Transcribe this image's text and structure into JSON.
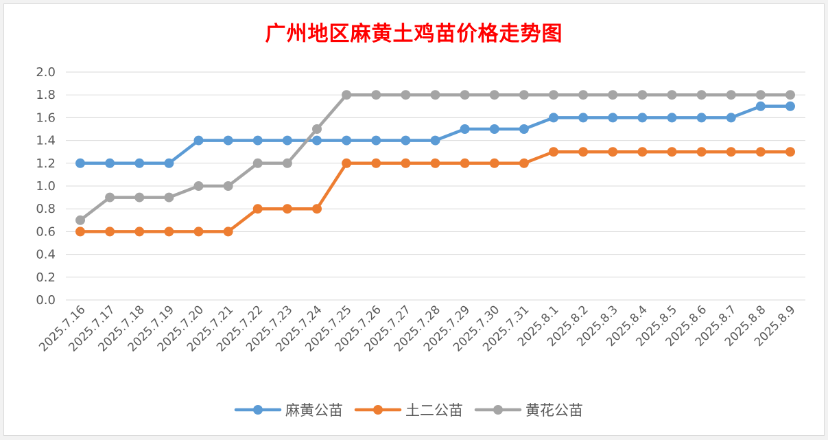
{
  "chart_data": {
    "type": "line",
    "title": "广州地区麻黄土鸡苗价格走势图",
    "xlabel": "",
    "ylabel": "",
    "ylim": [
      0,
      2.0
    ],
    "yticks": [
      "0.0",
      "0.2",
      "0.4",
      "0.6",
      "0.8",
      "1.0",
      "1.2",
      "1.4",
      "1.6",
      "1.8",
      "2.0"
    ],
    "grid": true,
    "legend_position": "bottom",
    "categories": [
      "2025.7.16",
      "2025.7.17",
      "2025.7.18",
      "2025.7.19",
      "2025.7.20",
      "2025.7.21",
      "2025.7.22",
      "2025.7.23",
      "2025.7.24",
      "2025.7.25",
      "2025.7.26",
      "2025.7.27",
      "2025.7.28",
      "2025.7.29",
      "2025.7.30",
      "2025.7.31",
      "2025.8.1",
      "2025.8.2",
      "2025.8.3",
      "2025.8.4",
      "2025.8.5",
      "2025.8.6",
      "2025.8.7",
      "2025.8.8",
      "2025.8.9"
    ],
    "series": [
      {
        "name": "麻黄公苗",
        "color": "#5b9bd5",
        "values": [
          1.2,
          1.2,
          1.2,
          1.2,
          1.4,
          1.4,
          1.4,
          1.4,
          1.4,
          1.4,
          1.4,
          1.4,
          1.4,
          1.5,
          1.5,
          1.5,
          1.6,
          1.6,
          1.6,
          1.6,
          1.6,
          1.6,
          1.6,
          1.7,
          1.7
        ]
      },
      {
        "name": "土二公苗",
        "color": "#ed7d31",
        "values": [
          0.6,
          0.6,
          0.6,
          0.6,
          0.6,
          0.6,
          0.8,
          0.8,
          0.8,
          1.2,
          1.2,
          1.2,
          1.2,
          1.2,
          1.2,
          1.2,
          1.3,
          1.3,
          1.3,
          1.3,
          1.3,
          1.3,
          1.3,
          1.3,
          1.3
        ]
      },
      {
        "name": "黄花公苗",
        "color": "#a5a5a5",
        "values": [
          0.7,
          0.9,
          0.9,
          0.9,
          1.0,
          1.0,
          1.2,
          1.2,
          1.5,
          1.8,
          1.8,
          1.8,
          1.8,
          1.8,
          1.8,
          1.8,
          1.8,
          1.8,
          1.8,
          1.8,
          1.8,
          1.8,
          1.8,
          1.8,
          1.8
        ]
      }
    ]
  },
  "colors": {
    "grid": "#d9d9d9",
    "axis_text": "#595959",
    "title": "#ff0000",
    "background": "#ffffff"
  }
}
